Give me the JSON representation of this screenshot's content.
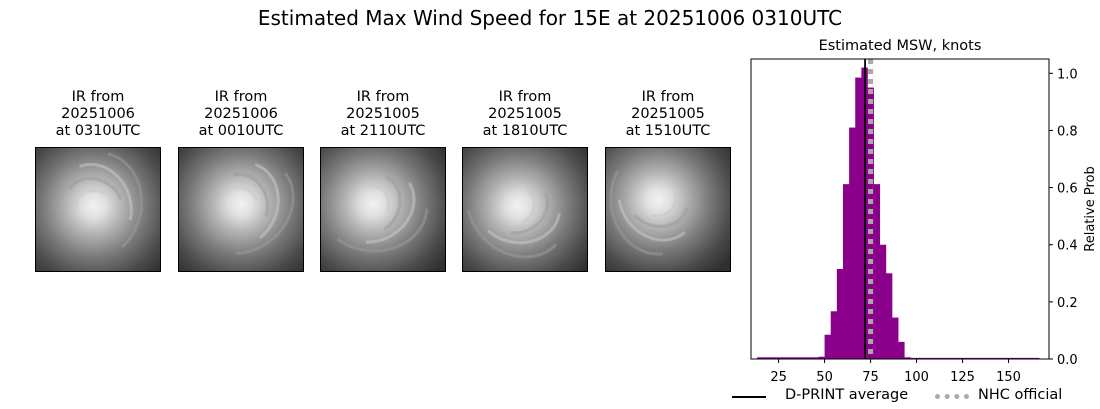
{
  "suptitle": "Estimated Max Wind Speed for 15E at 20251006 0310UTC",
  "ir_panels": [
    {
      "label": "IR from\n20251006\nat 0310UTC"
    },
    {
      "label": "IR from\n20251006\nat 0010UTC"
    },
    {
      "label": "IR from\n20251005\nat 2110UTC"
    },
    {
      "label": "IR from\n20251005\nat 1810UTC"
    },
    {
      "label": "IR from\n20251005\nat 1510UTC"
    }
  ],
  "legend": {
    "dprint_label": "D-PRINT average",
    "nhc_label": "NHC official"
  },
  "colors": {
    "bars": "#8b008b",
    "dprint_line": "#000000",
    "nhc_line": "#a9a9a9"
  },
  "chart_data": {
    "type": "bar",
    "title": "Estimated MSW, knots",
    "xlabel": "",
    "ylabel": "Relative Prob",
    "xlim": [
      10,
      172
    ],
    "ylim": [
      0,
      1.05
    ],
    "x_ticks": [
      25,
      50,
      75,
      100,
      125,
      150
    ],
    "y_ticks": [
      0.0,
      0.2,
      0.4,
      0.6,
      0.8,
      1.0
    ],
    "y_axis_side": "right",
    "bin_width": 3.33,
    "bins": [
      {
        "x": 15,
        "value": 0.006
      },
      {
        "x": 18.33,
        "value": 0.006
      },
      {
        "x": 21.67,
        "value": 0.006
      },
      {
        "x": 25,
        "value": 0.006
      },
      {
        "x": 28.33,
        "value": 0.006
      },
      {
        "x": 31.67,
        "value": 0.006
      },
      {
        "x": 35,
        "value": 0.006
      },
      {
        "x": 38.33,
        "value": 0.006
      },
      {
        "x": 41.67,
        "value": 0.006
      },
      {
        "x": 45,
        "value": 0.006
      },
      {
        "x": 48.33,
        "value": 0.008
      },
      {
        "x": 51.67,
        "value": 0.085
      },
      {
        "x": 55,
        "value": 0.167
      },
      {
        "x": 58.33,
        "value": 0.315
      },
      {
        "x": 61.67,
        "value": 0.612
      },
      {
        "x": 65,
        "value": 0.81
      },
      {
        "x": 68.33,
        "value": 0.985
      },
      {
        "x": 71.67,
        "value": 1.02
      },
      {
        "x": 75,
        "value": 0.95
      },
      {
        "x": 78.33,
        "value": 0.612
      },
      {
        "x": 81.67,
        "value": 0.4
      },
      {
        "x": 85,
        "value": 0.3
      },
      {
        "x": 88.33,
        "value": 0.145
      },
      {
        "x": 91.67,
        "value": 0.06
      },
      {
        "x": 95,
        "value": 0.006
      },
      {
        "x": 98.33,
        "value": 0.004
      },
      {
        "x": 101.67,
        "value": 0.004
      },
      {
        "x": 105,
        "value": 0.004
      },
      {
        "x": 108.33,
        "value": 0.004
      },
      {
        "x": 111.67,
        "value": 0.004
      },
      {
        "x": 115,
        "value": 0.004
      },
      {
        "x": 118.33,
        "value": 0.004
      },
      {
        "x": 121.67,
        "value": 0.004
      },
      {
        "x": 125,
        "value": 0.004
      },
      {
        "x": 128.33,
        "value": 0.004
      },
      {
        "x": 131.67,
        "value": 0.004
      },
      {
        "x": 135,
        "value": 0.004
      },
      {
        "x": 138.33,
        "value": 0.004
      },
      {
        "x": 141.67,
        "value": 0.004
      },
      {
        "x": 145,
        "value": 0.004
      },
      {
        "x": 148.33,
        "value": 0.004
      },
      {
        "x": 151.67,
        "value": 0.004
      },
      {
        "x": 155,
        "value": 0.004
      },
      {
        "x": 158.33,
        "value": 0.004
      },
      {
        "x": 161.67,
        "value": 0.004
      },
      {
        "x": 165,
        "value": 0.004
      }
    ],
    "dprint_average": 72,
    "nhc_official": 75,
    "legend_position": "bottom"
  }
}
